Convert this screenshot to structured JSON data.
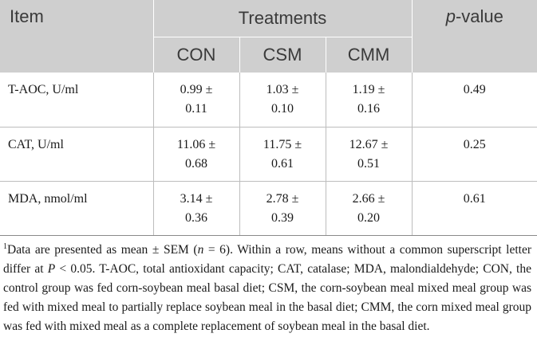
{
  "header": {
    "item": "Item",
    "treatments": "Treatments",
    "p_value_italic": "p",
    "p_value_rest": "-value",
    "groups": [
      "CON",
      "CSM",
      "CMM"
    ]
  },
  "rows": [
    {
      "label": "T-AOC, U/ml",
      "con_mean": "0.99 ±",
      "con_sem": "0.11",
      "csm_mean": "1.03 ±",
      "csm_sem": "0.10",
      "cmm_mean": "1.19 ±",
      "cmm_sem": "0.16",
      "p": "0.49"
    },
    {
      "label": "CAT, U/ml",
      "con_mean": "11.06 ±",
      "con_sem": "0.68",
      "csm_mean": "11.75 ±",
      "csm_sem": "0.61",
      "cmm_mean": "12.67 ±",
      "cmm_sem": "0.51",
      "p": "0.25"
    },
    {
      "label": "MDA, nmol/ml",
      "con_mean": "3.14 ±",
      "con_sem": "0.36",
      "csm_mean": "2.78 ±",
      "csm_sem": "0.39",
      "cmm_mean": "2.66 ±",
      "cmm_sem": "0.20",
      "p": "0.61"
    }
  ],
  "footnote": {
    "marker": "1",
    "part1": "Data are presented as mean ± SEM (",
    "n_italic": "n",
    "part2": " = 6). Within a row, means without a common superscript letter differ at ",
    "p_italic": "P",
    "part3": " < 0.05. T-AOC, total antioxidant capacity; CAT, catalase; MDA, malondialdehyde; CON, the control group was fed corn-soybean meal basal diet; CSM, the corn-soybean meal mixed meal group was fed with mixed meal to partially replace soybean meal in the basal diet; CMM, the corn mixed meal group was fed with mixed meal as a complete replacement of soybean meal in the basal diet."
  }
}
